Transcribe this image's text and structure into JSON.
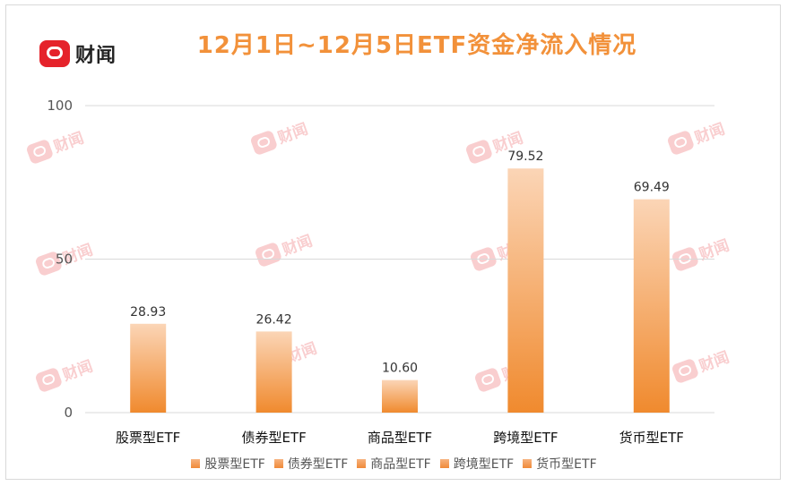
{
  "brand": {
    "name": "财闻",
    "watermark": "财闻"
  },
  "chart_data": {
    "type": "bar",
    "title": "12月1日~12月5日ETF资金净流入情况",
    "categories": [
      "股票型ETF",
      "债券型ETF",
      "商品型ETF",
      "跨境型ETF",
      "货币型ETF"
    ],
    "values": [
      28.93,
      26.42,
      10.6,
      79.52,
      69.49
    ],
    "value_labels": [
      "28.93",
      "26.42",
      "10.60",
      "79.52",
      "69.49"
    ],
    "ylim": [
      0,
      100
    ],
    "yticks": [
      "0",
      "50",
      "100"
    ],
    "legend": [
      "股票型ETF",
      "债券型ETF",
      "商品型ETF",
      "跨境型ETF",
      "货币型ETF"
    ],
    "legend_position": "bottom",
    "grid": true,
    "colors": {
      "bar_top": "#fbd5b6",
      "bar_bottom": "#f08a2e",
      "grid": "#d9d9d9"
    }
  }
}
